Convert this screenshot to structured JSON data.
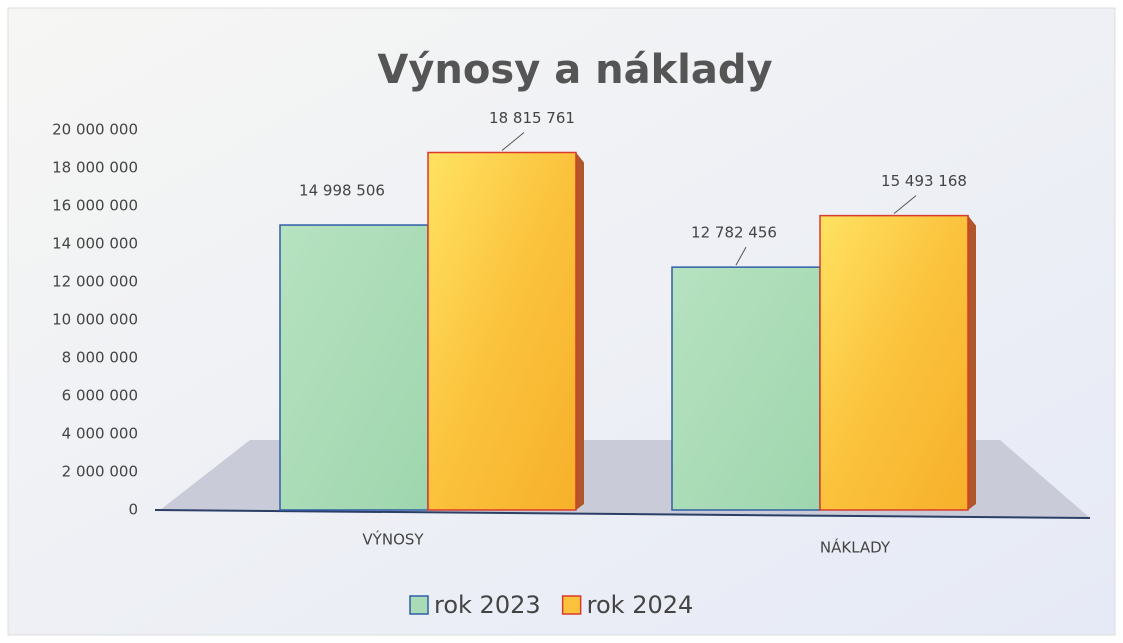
{
  "chart_data": {
    "type": "bar",
    "title": "Výnosy a náklady",
    "categories": [
      "VÝNOSY",
      "NÁKLADY"
    ],
    "series": [
      {
        "name": "rok 2023",
        "color": "#a9dcb6",
        "values": [
          14998506,
          12782456
        ],
        "value_labels": [
          "14 998 506",
          "12 782 456"
        ]
      },
      {
        "name": "rok 2024",
        "color": "#fbc23c",
        "values": [
          18815761,
          15493168
        ],
        "value_labels": [
          "18 815 761",
          "15 493 168"
        ]
      }
    ],
    "ylim": [
      0,
      20000000
    ],
    "yticks": [
      0,
      {
        "value": 2000000,
        "label": "2 000 000"
      },
      {
        "value": 4000000,
        "label": "4 000 000"
      },
      {
        "value": 6000000,
        "label": "6 000 000"
      },
      {
        "value": 8000000,
        "label": "8 000 000"
      },
      {
        "value": 10000000,
        "label": "10 000 000"
      },
      {
        "value": 12000000,
        "label": "12 000 000"
      },
      {
        "value": 14000000,
        "label": "14 000 000"
      },
      {
        "value": 16000000,
        "label": "16 000 000"
      },
      {
        "value": 18000000,
        "label": "18 000 000"
      },
      {
        "value": 20000000,
        "label": "20 000 000"
      }
    ],
    "grid": false,
    "legend": "bottom"
  }
}
